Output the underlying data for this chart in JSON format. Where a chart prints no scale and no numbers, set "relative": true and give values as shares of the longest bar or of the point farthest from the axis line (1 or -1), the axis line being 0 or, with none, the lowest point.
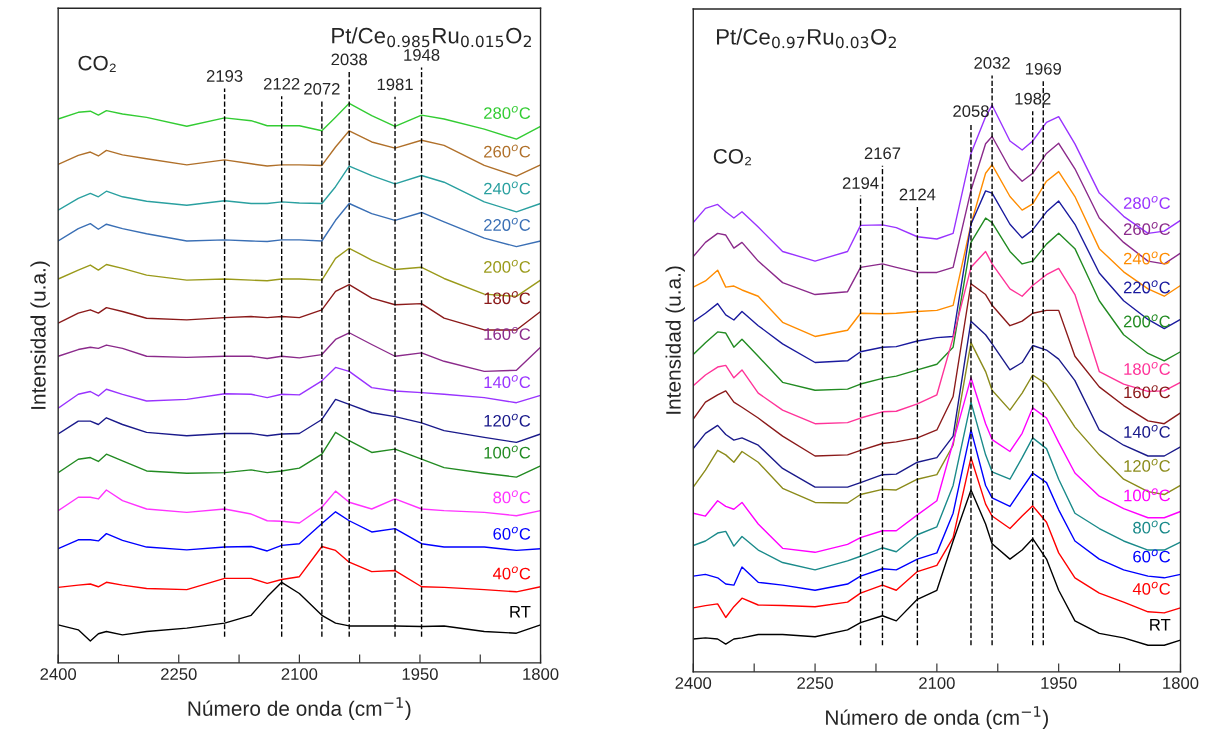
{
  "chart_data": [
    {
      "type": "line",
      "relative": true,
      "tick_labels": "x",
      "title": "Pt/Ce$_{0.985}$Ru$_{0.015}$O$_{2}$",
      "xlabel": "Número de onda (cm$^{−1}$)",
      "ylabel": "Intensidad (u.a.)",
      "xlim": [
        2400,
        1800
      ],
      "xticks": [
        2400,
        {
          "value": 2325,
          "label": null
        },
        2250,
        {
          "value": 2175,
          "label": null
        },
        2100,
        {
          "value": 2025,
          "label": null
        },
        1950,
        {
          "value": 1875,
          "label": null
        },
        1800
      ],
      "x": [
        2400,
        2375,
        2360,
        2350,
        2340,
        2320,
        2290,
        2240,
        2193,
        2160,
        2140,
        2122,
        2100,
        2072,
        2055,
        2038,
        2010,
        1981,
        1948,
        1920,
        1870,
        1830,
        1800
      ],
      "series": [
        {
          "name": "280$^{o}$C",
          "color": "#33cc33",
          "values": [
            0.972,
            0.984,
            0.986,
            0.979,
            0.987,
            0.981,
            0.975,
            0.959,
            0.974,
            0.969,
            0.96,
            0.96,
            0.96,
            0.951,
            0.975,
            1.0,
            0.978,
            0.959,
            0.979,
            0.972,
            0.954,
            0.936,
            0.959
          ]
        },
        {
          "name": "260$^{o}$C",
          "color": "#b0702a",
          "values": [
            0.891,
            0.907,
            0.913,
            0.906,
            0.916,
            0.908,
            0.901,
            0.89,
            0.899,
            0.892,
            0.888,
            0.89,
            0.89,
            0.889,
            0.922,
            0.951,
            0.931,
            0.92,
            0.934,
            0.925,
            0.889,
            0.87,
            0.89
          ]
        },
        {
          "name": "240$^{o}$C",
          "color": "#2aa0a0",
          "values": [
            0.809,
            0.83,
            0.839,
            0.833,
            0.843,
            0.833,
            0.825,
            0.818,
            0.826,
            0.821,
            0.821,
            0.824,
            0.822,
            0.821,
            0.851,
            0.888,
            0.871,
            0.856,
            0.871,
            0.859,
            0.824,
            0.806,
            0.821
          ]
        },
        {
          "name": "220$^{o}$C",
          "color": "#3a6fb5",
          "values": [
            0.754,
            0.776,
            0.785,
            0.775,
            0.784,
            0.776,
            0.767,
            0.754,
            0.756,
            0.754,
            0.753,
            0.756,
            0.756,
            0.754,
            0.791,
            0.821,
            0.803,
            0.791,
            0.805,
            0.788,
            0.759,
            0.744,
            0.754
          ]
        },
        {
          "name": "200$^{o}$C",
          "color": "#9a9a1a",
          "values": [
            0.686,
            0.702,
            0.711,
            0.702,
            0.712,
            0.705,
            0.693,
            0.684,
            0.686,
            0.684,
            0.683,
            0.686,
            0.686,
            0.684,
            0.723,
            0.741,
            0.72,
            0.703,
            0.707,
            0.687,
            0.659,
            0.655,
            0.684
          ]
        },
        {
          "name": "180$^{o}$C",
          "color": "#8b1a1a",
          "values": [
            0.607,
            0.625,
            0.631,
            0.625,
            0.635,
            0.628,
            0.616,
            0.613,
            0.617,
            0.619,
            0.617,
            0.619,
            0.617,
            0.631,
            0.664,
            0.676,
            0.652,
            0.64,
            0.642,
            0.616,
            0.595,
            0.595,
            0.628
          ]
        },
        {
          "name": "160$^{o}$C",
          "color": "#8b2a8b",
          "values": [
            0.548,
            0.56,
            0.564,
            0.562,
            0.568,
            0.562,
            0.548,
            0.546,
            0.548,
            0.548,
            0.544,
            0.548,
            0.545,
            0.551,
            0.578,
            0.59,
            0.569,
            0.548,
            0.554,
            0.539,
            0.521,
            0.523,
            0.564
          ]
        },
        {
          "name": "140$^{o}$C",
          "color": "#9933ff",
          "values": [
            0.455,
            0.48,
            0.485,
            0.477,
            0.489,
            0.48,
            0.468,
            0.471,
            0.481,
            0.48,
            0.474,
            0.48,
            0.479,
            0.504,
            0.528,
            0.521,
            0.492,
            0.486,
            0.483,
            0.48,
            0.474,
            0.465,
            0.478
          ]
        },
        {
          "name": "120$^{o}$C",
          "color": "#1a1a8b",
          "values": [
            0.409,
            0.432,
            0.432,
            0.426,
            0.438,
            0.426,
            0.412,
            0.406,
            0.41,
            0.41,
            0.406,
            0.409,
            0.41,
            0.435,
            0.471,
            0.462,
            0.447,
            0.44,
            0.429,
            0.415,
            0.403,
            0.394,
            0.409
          ]
        },
        {
          "name": "100$^{o}$C",
          "color": "#228b22",
          "values": [
            0.34,
            0.364,
            0.367,
            0.36,
            0.373,
            0.361,
            0.343,
            0.339,
            0.34,
            0.345,
            0.34,
            0.343,
            0.348,
            0.373,
            0.412,
            0.397,
            0.376,
            0.382,
            0.364,
            0.349,
            0.339,
            0.332,
            0.352
          ]
        },
        {
          "name": "80$^{o}$C",
          "color": "#ff33ff",
          "values": [
            0.272,
            0.296,
            0.296,
            0.293,
            0.309,
            0.29,
            0.275,
            0.269,
            0.275,
            0.266,
            0.254,
            0.253,
            0.25,
            0.278,
            0.307,
            0.287,
            0.275,
            0.293,
            0.275,
            0.272,
            0.269,
            0.263,
            0.272
          ]
        },
        {
          "name": "60$^{o}$C",
          "color": "#0000ff",
          "values": [
            0.204,
            0.22,
            0.22,
            0.218,
            0.231,
            0.219,
            0.207,
            0.202,
            0.207,
            0.208,
            0.2,
            0.21,
            0.213,
            0.249,
            0.27,
            0.254,
            0.234,
            0.24,
            0.213,
            0.207,
            0.207,
            0.201,
            0.204
          ]
        },
        {
          "name": "40$^{o}$C",
          "color": "#ff0000",
          "values": [
            0.135,
            0.139,
            0.141,
            0.136,
            0.144,
            0.139,
            0.133,
            0.131,
            0.151,
            0.151,
            0.142,
            0.149,
            0.154,
            0.208,
            0.201,
            0.18,
            0.163,
            0.165,
            0.136,
            0.135,
            0.131,
            0.127,
            0.136
          ]
        },
        {
          "name": "RT",
          "color": "#000000",
          "values": [
            0.068,
            0.059,
            0.039,
            0.052,
            0.056,
            0.05,
            0.056,
            0.062,
            0.071,
            0.085,
            0.118,
            0.144,
            0.124,
            0.085,
            0.071,
            0.066,
            0.066,
            0.066,
            0.065,
            0.066,
            0.056,
            0.053,
            0.068
          ]
        }
      ],
      "ref_lines": [
        {
          "axis": "x",
          "value": 2193,
          "label": "2193",
          "color": "#000000",
          "line_style": "dashed"
        },
        {
          "axis": "x",
          "value": 2122,
          "label": "2122",
          "color": "#000000",
          "line_style": "dashed"
        },
        {
          "axis": "x",
          "value": 2072,
          "label": "2072",
          "color": "#000000",
          "line_style": "dashed"
        },
        {
          "axis": "x",
          "value": 2038,
          "label": "2038",
          "color": "#000000",
          "line_style": "dashed"
        },
        {
          "axis": "x",
          "value": 1981,
          "label": "1981",
          "color": "#000000",
          "line_style": "dashed"
        },
        {
          "axis": "x",
          "value": 1948,
          "label": "1948",
          "color": "#000000",
          "line_style": "dashed"
        }
      ],
      "annotations": [
        "CO₂"
      ]
    },
    {
      "type": "line",
      "relative": true,
      "tick_labels": "x",
      "title": "Pt/Ce$_{0.97}$Ru$_{0.03}$O$_{2}$",
      "xlabel": "Número de onda (cm$^{−1}$)",
      "ylabel": "Intensidad (u.a.)",
      "xlim": [
        2400,
        1800
      ],
      "xticks": [
        2400,
        {
          "value": 2325,
          "label": null
        },
        2250,
        {
          "value": 2175,
          "label": null
        },
        2100,
        {
          "value": 2025,
          "label": null
        },
        1950,
        {
          "value": 1875,
          "label": null
        },
        1800
      ],
      "x": [
        2400,
        2385,
        2370,
        2360,
        2350,
        2340,
        2320,
        2290,
        2250,
        2210,
        2194,
        2167,
        2150,
        2124,
        2100,
        2080,
        2058,
        2040,
        2032,
        2010,
        1995,
        1982,
        1965,
        1950,
        1930,
        1900,
        1870,
        1840,
        1820,
        1800
      ],
      "series": [
        {
          "name": "280$^{o}$C",
          "color": "#9933ff",
          "values": [
            0.793,
            0.818,
            0.825,
            0.812,
            0.801,
            0.812,
            0.785,
            0.742,
            0.725,
            0.742,
            0.788,
            0.789,
            0.784,
            0.768,
            0.764,
            0.774,
            0.915,
            0.98,
            1.0,
            0.937,
            0.921,
            0.937,
            0.97,
            0.98,
            0.932,
            0.845,
            0.804,
            0.774,
            0.778,
            0.797
          ]
        },
        {
          "name": "260$^{o}$C",
          "color": "#8b2a8b",
          "values": [
            0.733,
            0.758,
            0.774,
            0.771,
            0.748,
            0.758,
            0.725,
            0.687,
            0.666,
            0.671,
            0.714,
            0.72,
            0.714,
            0.705,
            0.705,
            0.714,
            0.85,
            0.932,
            0.945,
            0.888,
            0.866,
            0.88,
            0.915,
            0.933,
            0.888,
            0.801,
            0.758,
            0.725,
            0.72,
            0.739
          ]
        },
        {
          "name": "240$^{o}$C",
          "color": "#ff8c00",
          "values": [
            0.679,
            0.69,
            0.709,
            0.679,
            0.681,
            0.674,
            0.663,
            0.617,
            0.592,
            0.603,
            0.633,
            0.632,
            0.633,
            0.636,
            0.638,
            0.647,
            0.79,
            0.88,
            0.895,
            0.839,
            0.815,
            0.826,
            0.866,
            0.883,
            0.839,
            0.747,
            0.706,
            0.676,
            0.663,
            0.682
          ]
        },
        {
          "name": "220$^{o}$C",
          "color": "#1a1a9e",
          "values": [
            0.618,
            0.633,
            0.65,
            0.63,
            0.621,
            0.636,
            0.611,
            0.579,
            0.546,
            0.549,
            0.565,
            0.573,
            0.574,
            0.584,
            0.59,
            0.592,
            0.79,
            0.849,
            0.845,
            0.79,
            0.766,
            0.78,
            0.812,
            0.831,
            0.79,
            0.704,
            0.655,
            0.622,
            0.606,
            0.622
          ]
        },
        {
          "name": "200$^{o}$C",
          "color": "#228b22",
          "values": [
            0.56,
            0.581,
            0.6,
            0.598,
            0.573,
            0.587,
            0.557,
            0.511,
            0.497,
            0.499,
            0.508,
            0.518,
            0.522,
            0.533,
            0.543,
            0.573,
            0.758,
            0.801,
            0.793,
            0.742,
            0.72,
            0.725,
            0.755,
            0.774,
            0.747,
            0.655,
            0.595,
            0.562,
            0.549,
            0.565
          ]
        },
        {
          "name": "180$^{o}$C",
          "color": "#ff3399",
          "values": [
            0.505,
            0.524,
            0.538,
            0.541,
            0.519,
            0.533,
            0.492,
            0.462,
            0.438,
            0.44,
            0.448,
            0.459,
            0.46,
            0.473,
            0.489,
            0.59,
            0.714,
            0.742,
            0.72,
            0.676,
            0.663,
            0.682,
            0.701,
            0.712,
            0.666,
            0.53,
            0.508,
            0.495,
            0.496,
            0.511
          ]
        },
        {
          "name": "160$^{o}$C",
          "color": "#8b1a1a",
          "values": [
            0.446,
            0.476,
            0.489,
            0.496,
            0.476,
            0.467,
            0.448,
            0.416,
            0.381,
            0.383,
            0.391,
            0.403,
            0.406,
            0.413,
            0.427,
            0.486,
            0.685,
            0.666,
            0.647,
            0.611,
            0.619,
            0.633,
            0.638,
            0.638,
            0.557,
            0.503,
            0.47,
            0.443,
            0.438,
            0.457
          ]
        },
        {
          "name": "140$^{o}$C",
          "color": "#1a1a8b",
          "values": [
            0.394,
            0.421,
            0.435,
            0.419,
            0.409,
            0.413,
            0.4,
            0.359,
            0.326,
            0.326,
            0.334,
            0.348,
            0.349,
            0.37,
            0.378,
            0.416,
            0.619,
            0.595,
            0.579,
            0.533,
            0.546,
            0.576,
            0.568,
            0.552,
            0.514,
            0.427,
            0.4,
            0.381,
            0.381,
            0.397
          ]
        },
        {
          "name": "120$^{o}$C",
          "color": "#8b8b1a",
          "values": [
            0.326,
            0.356,
            0.391,
            0.383,
            0.37,
            0.389,
            0.37,
            0.324,
            0.299,
            0.298,
            0.313,
            0.322,
            0.321,
            0.34,
            0.348,
            0.4,
            0.581,
            0.53,
            0.497,
            0.462,
            0.492,
            0.524,
            0.508,
            0.476,
            0.432,
            0.383,
            0.34,
            0.318,
            0.313,
            0.329
          ]
        },
        {
          "name": "100$^{o}$C",
          "color": "#ff00ff",
          "values": [
            0.28,
            0.275,
            0.302,
            0.292,
            0.287,
            0.299,
            0.261,
            0.218,
            0.211,
            0.225,
            0.237,
            0.249,
            0.249,
            0.277,
            0.302,
            0.405,
            0.519,
            0.438,
            0.41,
            0.389,
            0.421,
            0.466,
            0.448,
            0.405,
            0.351,
            0.31,
            0.288,
            0.272,
            0.272,
            0.283
          ]
        },
        {
          "name": "80$^{o}$C",
          "color": "#1a8a8a",
          "values": [
            0.223,
            0.231,
            0.245,
            0.248,
            0.222,
            0.239,
            0.215,
            0.193,
            0.18,
            0.196,
            0.204,
            0.219,
            0.212,
            0.242,
            0.256,
            0.329,
            0.476,
            0.383,
            0.353,
            0.34,
            0.378,
            0.413,
            0.394,
            0.34,
            0.28,
            0.253,
            0.231,
            0.215,
            0.215,
            0.229
          ]
        },
        {
          "name": "60$^{o}$C",
          "color": "#0000ff",
          "values": [
            0.169,
            0.172,
            0.166,
            0.155,
            0.153,
            0.185,
            0.158,
            0.153,
            0.144,
            0.155,
            0.169,
            0.182,
            0.18,
            0.199,
            0.21,
            0.28,
            0.427,
            0.329,
            0.307,
            0.292,
            0.324,
            0.351,
            0.334,
            0.286,
            0.231,
            0.199,
            0.18,
            0.169,
            0.166,
            0.172
          ]
        },
        {
          "name": "40$^{o}$C",
          "color": "#ff0000",
          "values": [
            0.113,
            0.117,
            0.12,
            0.096,
            0.115,
            0.13,
            0.118,
            0.117,
            0.115,
            0.123,
            0.139,
            0.153,
            0.144,
            0.177,
            0.188,
            0.237,
            0.378,
            0.296,
            0.275,
            0.253,
            0.275,
            0.293,
            0.264,
            0.21,
            0.166,
            0.139,
            0.123,
            0.106,
            0.104,
            0.113
          ]
        },
        {
          "name": "RT",
          "color": "#000000",
          "values": [
            0.058,
            0.06,
            0.058,
            0.049,
            0.058,
            0.06,
            0.066,
            0.066,
            0.062,
            0.074,
            0.087,
            0.099,
            0.09,
            0.128,
            0.144,
            0.231,
            0.321,
            0.261,
            0.226,
            0.199,
            0.215,
            0.235,
            0.199,
            0.144,
            0.09,
            0.068,
            0.06,
            0.047,
            0.047,
            0.056
          ]
        }
      ],
      "ref_lines": [
        {
          "axis": "x",
          "value": 2194,
          "label": "2194",
          "color": "#000000",
          "line_style": "dashed"
        },
        {
          "axis": "x",
          "value": 2167,
          "label": "2167",
          "color": "#000000",
          "line_style": "dashed"
        },
        {
          "axis": "x",
          "value": 2124,
          "label": "2124",
          "color": "#000000",
          "line_style": "dashed"
        },
        {
          "axis": "x",
          "value": 2058,
          "label": "2058",
          "color": "#000000",
          "line_style": "dashed"
        },
        {
          "axis": "x",
          "value": 2032,
          "label": "2032",
          "color": "#000000",
          "line_style": "dashed"
        },
        {
          "axis": "x",
          "value": 1982,
          "label": "1982",
          "color": "#000000",
          "line_style": "dashed"
        },
        {
          "axis": "x",
          "value": 1969,
          "label": "1969",
          "color": "#000000",
          "line_style": "dashed"
        }
      ],
      "annotations": [
        "CO₂"
      ]
    }
  ]
}
